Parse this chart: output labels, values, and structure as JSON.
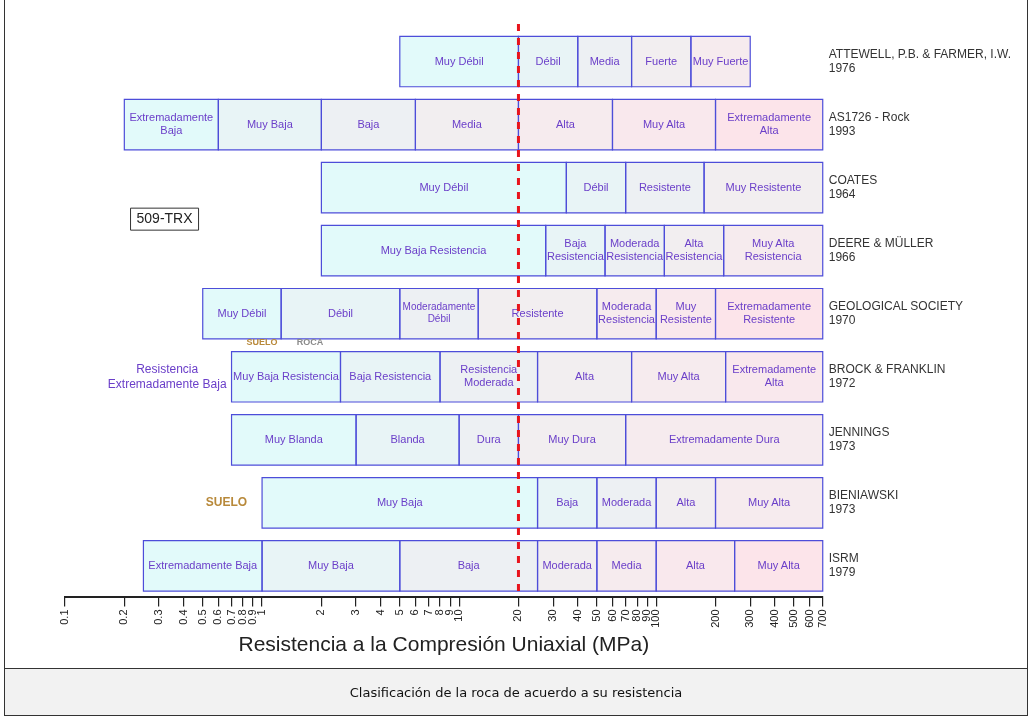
{
  "chart_data": {
    "type": "bar",
    "orientation": "horizontal",
    "title": "Clasificación de la roca de acuerdo a su resistencia",
    "xlabel": "Resistencia a la Compresión Uniaxial (MPa)",
    "categories": [
      "ATTEWELL, P.B. & FARMER, I.W. 1976",
      "AS1726 - Rock 1993",
      "COATES 1964",
      "DEERE & MÜLLER 1966",
      "GEOLOGICAL SOCIETY 1970",
      "BROCK & FRANKLIN 1972",
      "JENNINGS 1973",
      "BIENIAWSKI 1973",
      "ISRM 1979"
    ],
    "series": [
      {
        "color": "#e2fafa",
        "base": [
          5,
          0.2,
          2,
          2,
          0.5,
          0.7,
          0.7,
          1,
          0.25
        ],
        "values": [
          15,
          0.4,
          33,
          25.5,
          0.75,
          1.8,
          2.3,
          24,
          0.75
        ],
        "value_labels": [
          "Muy Débil",
          "Extremadamente Baja",
          "Muy Débil",
          "Muy Baja Resistencia",
          "Muy Débil",
          "Muy Baja Resistencia",
          "Muy Blanda",
          "Muy Baja",
          "Extremadamente Baja"
        ]
      },
      {
        "color": "#e8f4f6",
        "base": [
          20,
          0.6,
          35,
          27.5,
          1.25,
          2.5,
          3,
          25,
          1
        ],
        "values": [
          20,
          1.4,
          35,
          27.5,
          3.75,
          5.5,
          7,
          25,
          4
        ],
        "value_labels": [
          "Débil",
          "Muy Baja",
          "Débil",
          "Baja Resistencia",
          "Débil",
          "Baja Resistencia",
          "Blanda",
          "Baja",
          "Muy Baja"
        ]
      },
      {
        "color": "#edf0f3",
        "base": [
          40,
          2,
          70,
          55,
          5,
          8,
          10,
          50,
          5
        ],
        "values": [
          35,
          4,
          105,
          55,
          7.5,
          17,
          10,
          50,
          20
        ],
        "value_labels": [
          "Media",
          "Baja",
          "Resistente",
          "Moderada Resistencia",
          "Moderadamente Débil",
          "Resistencia Moderada",
          "Dura",
          "Moderada",
          "Baja"
        ]
      },
      {
        "color": "#f2eef0",
        "base": [
          75,
          6,
          175,
          110,
          12.5,
          25,
          20,
          100,
          25
        ],
        "values": [
          75,
          14,
          525,
          110,
          37.5,
          50,
          50,
          100,
          25
        ],
        "value_labels": [
          "Fuerte",
          "Media",
          "Muy Resistente",
          "Alta Resistencia",
          "Resistente",
          "Alta",
          "Muy Dura",
          "Alta",
          "Moderada"
        ]
      },
      {
        "color": "#f6ebee",
        "base": [
          150,
          20,
          null,
          220,
          50,
          75,
          70,
          200,
          50
        ],
        "values": [
          150,
          40,
          null,
          480,
          50,
          150,
          630,
          500,
          50
        ],
        "value_labels": [
          "Muy Fuerte",
          "Alta",
          null,
          "Muy Alta Resistencia",
          "Moderada Resistencia",
          "Muy Alta",
          "Extremadamente Dura",
          "Muy Alta",
          "Media"
        ]
      },
      {
        "color": "#f9e8ed",
        "base": [
          null,
          60,
          null,
          null,
          100,
          225,
          null,
          null,
          100
        ],
        "values": [
          null,
          140,
          null,
          null,
          100,
          475,
          null,
          null,
          150
        ],
        "value_labels": [
          null,
          "Muy Alta",
          null,
          null,
          "Muy Resistente",
          "Extremadamente Alta",
          null,
          null,
          "Alta"
        ]
      },
      {
        "color": "#fce4ea",
        "base": [
          null,
          200,
          null,
          null,
          200,
          null,
          null,
          null,
          250
        ],
        "values": [
          null,
          500,
          null,
          null,
          500,
          null,
          null,
          null,
          450
        ],
        "value_labels": [
          null,
          "Extremadamente Alta",
          null,
          null,
          "Extremadamente Resistente",
          null,
          null,
          null,
          "Muy Alta"
        ]
      }
    ],
    "log": "x",
    "xlim": [
      0.1,
      700
    ],
    "xticks": [
      0.1,
      0.2,
      0.3,
      0.4,
      0.5,
      0.6,
      0.7,
      0.8,
      0.9,
      1,
      2,
      3,
      4,
      5,
      6,
      7,
      8,
      9,
      10,
      20,
      30,
      40,
      50,
      60,
      70,
      80,
      90,
      100,
      200,
      300,
      400,
      500,
      600,
      700
    ],
    "ref_lines": [
      {
        "axis": "x",
        "value": 20,
        "color": "#e8141c",
        "line_style": "dashed"
      }
    ],
    "annotations": [
      "509-TRX",
      "SUELO",
      "ROCA",
      "Resistencia Extremadamente Baja",
      "SUELO"
    ],
    "grid": false,
    "legend": false
  }
}
